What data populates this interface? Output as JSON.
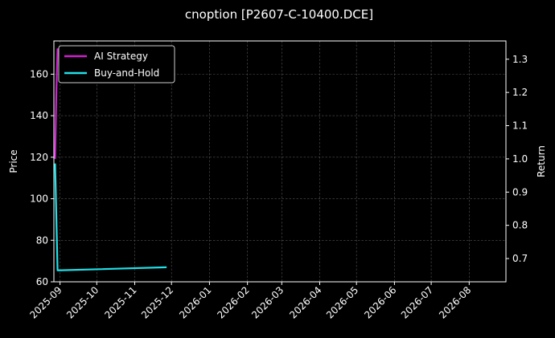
{
  "chart_data": {
    "type": "line",
    "title": "cnoption [P2607-C-10400.DCE]",
    "ylabel_left": "Price",
    "ylabel_right": "Return",
    "xlim": [
      "2025-08-27",
      "2026-08-31"
    ],
    "ylim_left": [
      60,
      176
    ],
    "ylim_right": [
      0.63,
      1.355
    ],
    "grid": true,
    "legend_position": "top-left",
    "x_ticks": [
      "2025-09",
      "2025-10",
      "2025-11",
      "2025-12",
      "2026-01",
      "2026-02",
      "2026-03",
      "2026-04",
      "2026-05",
      "2026-06",
      "2026-07",
      "2026-08"
    ],
    "y_ticks_left": [
      60,
      80,
      100,
      120,
      140,
      160
    ],
    "y_ticks_right": [
      0.7,
      0.8,
      0.9,
      1.0,
      1.1,
      1.2,
      1.3
    ],
    "colors": {
      "background": "#000000",
      "ai": "#d020d0",
      "bh": "#20e0e8",
      "grid": "#555555"
    },
    "series": [
      {
        "name": "AI Strategy",
        "axis": "right",
        "points": [
          {
            "x": "2025-08-28",
            "y": 1.0
          },
          {
            "x": "2025-08-29",
            "y": 1.2
          },
          {
            "x": "2025-08-30",
            "y": 1.33
          },
          {
            "x": "2025-09-05",
            "y": 1.33
          },
          {
            "x": "2025-11-27",
            "y": 1.325
          }
        ]
      },
      {
        "name": "Buy-and-Hold",
        "axis": "left",
        "points": [
          {
            "x": "2025-08-28",
            "y": 117
          },
          {
            "x": "2025-08-30",
            "y": 65.5
          },
          {
            "x": "2025-11-27",
            "y": 67
          }
        ]
      }
    ]
  }
}
